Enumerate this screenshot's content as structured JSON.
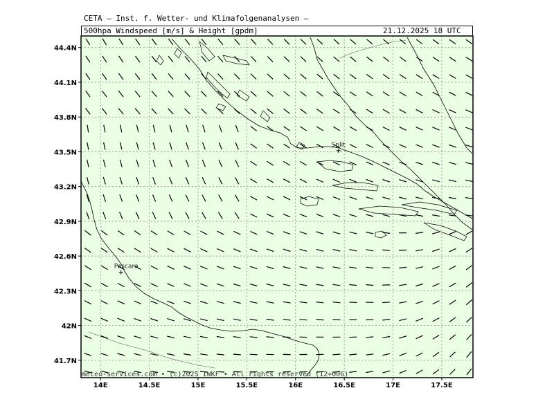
{
  "header": {
    "title": "CETA — Inst. f. Wetter- und Klimafolgenanalysen —",
    "subtitle": "500hpa Windspeed [m/s] & Height [gpdm]",
    "valid_time": "21.12.2025 18 UTC"
  },
  "footer": {
    "credit": "meteo-services.com • (c)2025 IWKF • All rights reserved (12+006)"
  },
  "map": {
    "lat_range": [
      41.55,
      44.5
    ],
    "lon_range": [
      13.8,
      17.82
    ],
    "lat_ticks": [
      {
        "value": 44.4,
        "label": "44.4N"
      },
      {
        "value": 44.1,
        "label": "44.1N"
      },
      {
        "value": 43.8,
        "label": "43.8N"
      },
      {
        "value": 43.5,
        "label": "43.5N"
      },
      {
        "value": 43.2,
        "label": "43.2N"
      },
      {
        "value": 42.9,
        "label": "42.9N"
      },
      {
        "value": 42.6,
        "label": "42.6N"
      },
      {
        "value": 42.3,
        "label": "42.3N"
      },
      {
        "value": 42.0,
        "label": "42N"
      },
      {
        "value": 41.7,
        "label": "41.7N"
      }
    ],
    "lon_ticks": [
      {
        "value": 14.0,
        "label": "14E"
      },
      {
        "value": 14.5,
        "label": "14.5E"
      },
      {
        "value": 15.0,
        "label": "15E"
      },
      {
        "value": 15.5,
        "label": "15.5E"
      },
      {
        "value": 16.0,
        "label": "16E"
      },
      {
        "value": 16.5,
        "label": "16.5E"
      },
      {
        "value": 17.0,
        "label": "17E"
      },
      {
        "value": 17.5,
        "label": "17.5E"
      }
    ],
    "cities": [
      {
        "name": "Split",
        "lat": 43.51,
        "lon": 16.44
      },
      {
        "name": "Pescara",
        "lat": 42.46,
        "lon": 14.21
      }
    ],
    "colors": {
      "background": "#ebffe5",
      "grid": "#888888",
      "coast": "#000000",
      "wind": "#000000"
    },
    "wind_grid": {
      "lon_start": 13.87,
      "lon_step": 0.17,
      "lon_count": 24,
      "lat_start": 44.45,
      "lat_step": 0.15,
      "lat_count": 20
    }
  }
}
